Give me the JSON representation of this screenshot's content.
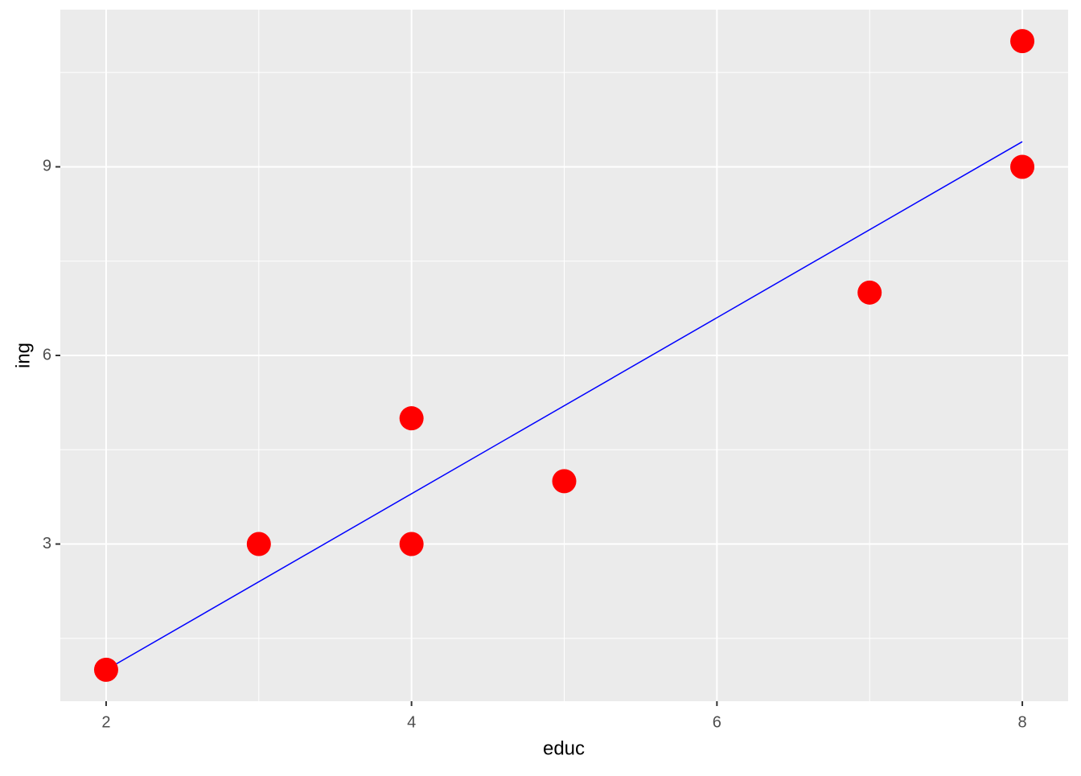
{
  "chart_data": {
    "type": "scatter",
    "x_label": "educ",
    "y_label": "ing",
    "x": [
      2,
      3,
      4,
      4,
      5,
      7,
      8,
      8
    ],
    "values": [
      1,
      3,
      5,
      3,
      4,
      7,
      9,
      11
    ],
    "color": "#ff0000",
    "trend_line": {
      "x": [
        2,
        8
      ],
      "values": [
        1.0,
        9.4
      ],
      "color": "#0000ff"
    },
    "xlim": [
      1.7,
      8.3
    ],
    "ylim": [
      0.5,
      11.5
    ],
    "xticks": [
      2,
      4,
      6,
      8
    ],
    "yticks": [
      3,
      6,
      9
    ],
    "grid": true,
    "background": "#ebebeb"
  }
}
